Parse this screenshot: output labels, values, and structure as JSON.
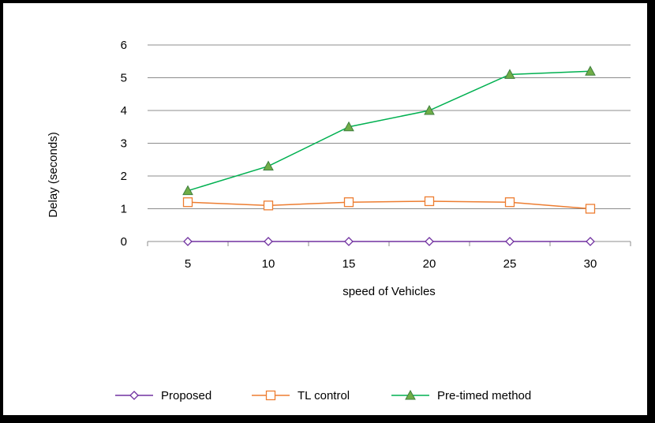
{
  "chart_data": {
    "type": "line",
    "title": "",
    "xlabel": "speed of Vehicles",
    "ylabel": "Delay (seconds)",
    "categories": [
      "5",
      "10",
      "15",
      "20",
      "25",
      "30"
    ],
    "ylim": [
      0,
      6
    ],
    "yticks": [
      "0",
      "1",
      "2",
      "3",
      "4",
      "5",
      "6"
    ],
    "grid": "horizontal",
    "legend_position": "bottom",
    "series": [
      {
        "name": "Proposed",
        "values": [
          0,
          0,
          0,
          0,
          0,
          0
        ],
        "color": "#7030a0",
        "marker": "diamond"
      },
      {
        "name": "TL control",
        "values": [
          1.2,
          1.1,
          1.2,
          1.23,
          1.2,
          1.0
        ],
        "color": "#ed7d31",
        "marker": "square"
      },
      {
        "name": "Pre-timed method",
        "values": [
          1.55,
          2.3,
          3.5,
          4.0,
          5.1,
          5.2
        ],
        "color": "#00b050",
        "marker": "triangle",
        "fill": "#70ad47"
      }
    ]
  }
}
